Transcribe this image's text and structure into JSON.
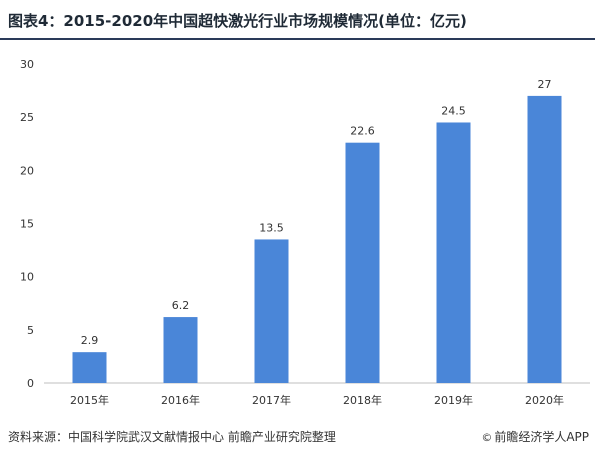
{
  "title": "图表4：2015-2020年中国超快激光行业市场规模情况(单位：亿元)",
  "source": "资料来源：中国科学院武汉文献情报中心 前瞻产业研究院整理",
  "credit": "前瞻经济学人APP",
  "colors": {
    "bar": "#4a86d8",
    "axis": "#bfbfbf",
    "grid": "#e6e6e6",
    "text": "#333333"
  },
  "chart_data": {
    "type": "bar",
    "categories": [
      "2015年",
      "2016年",
      "2017年",
      "2018年",
      "2019年",
      "2020年"
    ],
    "values": [
      2.9,
      6.2,
      13.5,
      22.6,
      24.5,
      27
    ],
    "data_labels": [
      "2.9",
      "6.2",
      "13.5",
      "22.6",
      "24.5",
      "27"
    ],
    "yticks": [
      "0",
      "5",
      "10",
      "15",
      "20",
      "25",
      "30"
    ],
    "ylim": [
      0,
      30
    ],
    "grid": false,
    "legend": "none"
  }
}
